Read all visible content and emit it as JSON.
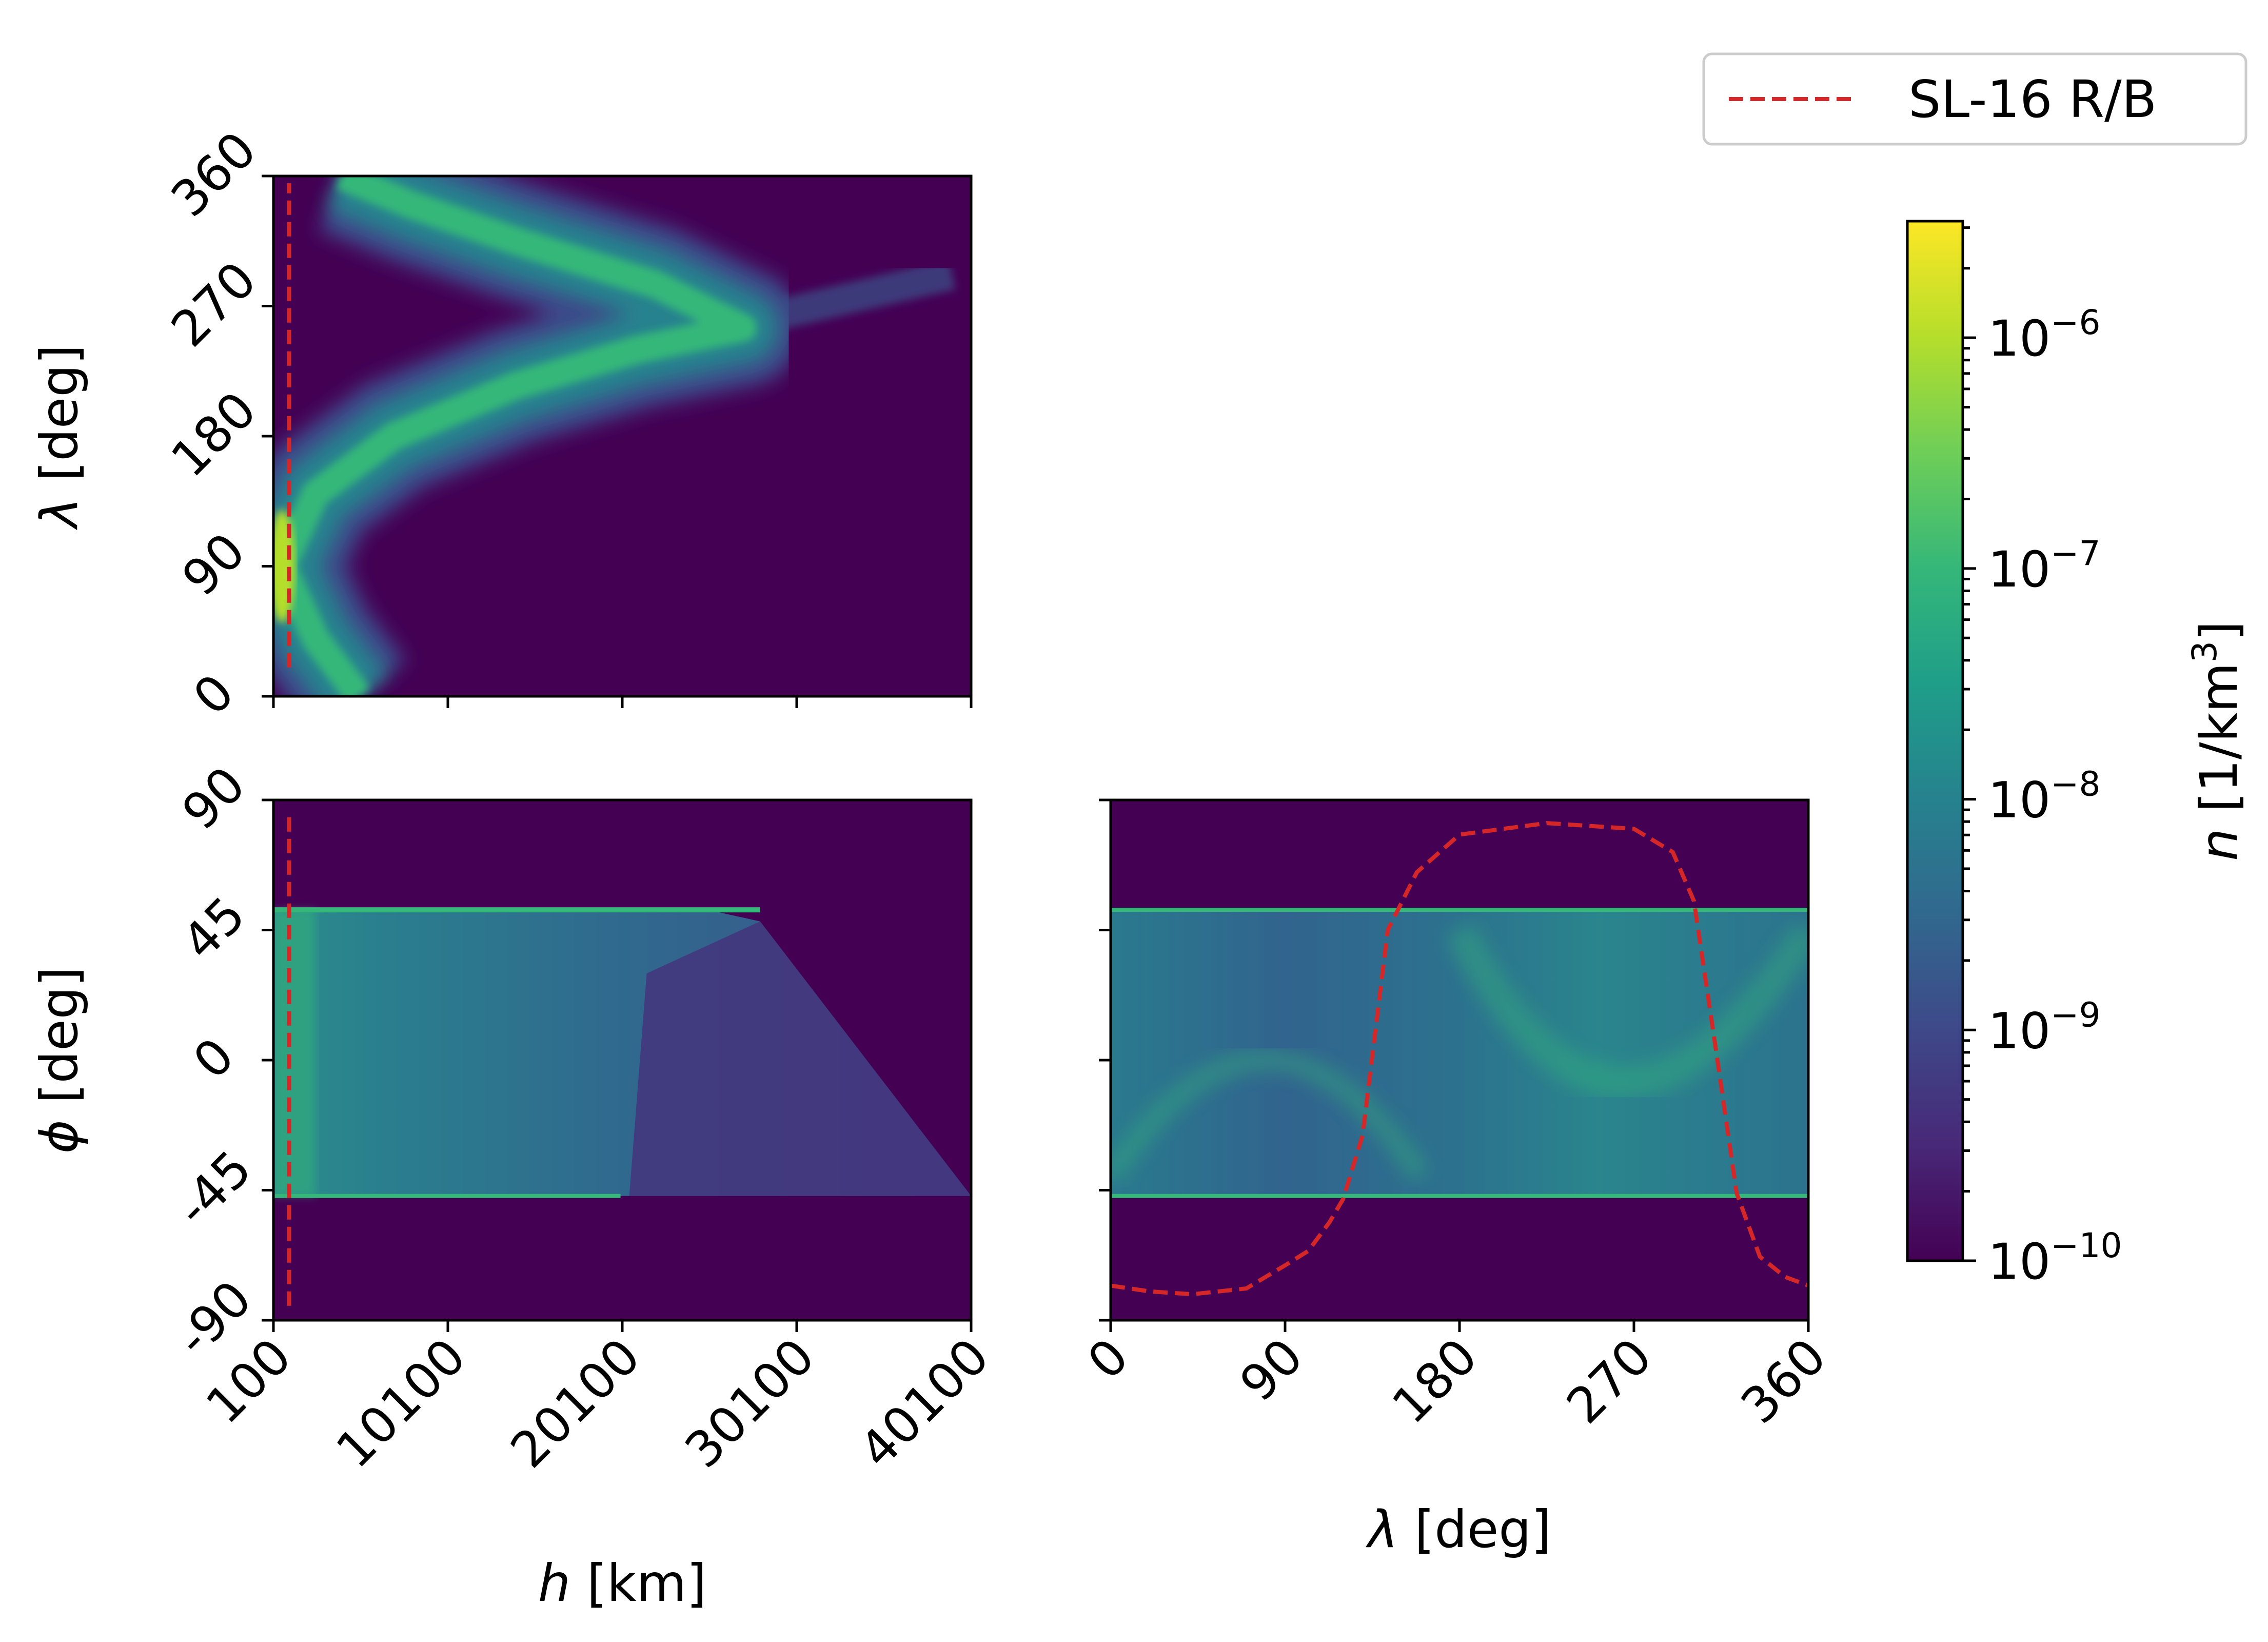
{
  "chart_data": [
    {
      "id": "top-left",
      "type": "heatmap",
      "xlabel": "h [km]",
      "ylabel": "λ [deg]",
      "xlim": [
        100,
        40100
      ],
      "ylim": [
        0,
        360
      ],
      "xticks": [
        100,
        10100,
        20100,
        30100,
        40100
      ],
      "xtick_labels_visible": false,
      "yticks": [
        0,
        90,
        180,
        270,
        360
      ],
      "ytick_labels": [
        "0",
        "90",
        "180",
        "270",
        "360"
      ],
      "density_ridge": {
        "h": [
          5000,
          2500,
          600,
          2500,
          7000,
          14000,
          21000,
          27000,
          22000,
          14000,
          8000,
          4000
        ],
        "lambda": [
          0,
          40,
          90,
          140,
          180,
          215,
          240,
          255,
          285,
          315,
          340,
          360
        ]
      },
      "reference_track": {
        "name": "SL-16 R/B",
        "h": [
          1000,
          1000
        ],
        "lambda": [
          20,
          355
        ]
      }
    },
    {
      "id": "bottom-left",
      "type": "heatmap",
      "xlabel": "h [km]",
      "ylabel": "φ [deg]",
      "xlim": [
        100,
        40100
      ],
      "ylim": [
        -90,
        90
      ],
      "xticks": [
        100,
        10100,
        20100,
        30100,
        40100
      ],
      "xtick_labels": [
        "100",
        "10100",
        "20100",
        "30100",
        "40100"
      ],
      "yticks": [
        -90,
        -45,
        0,
        45,
        90
      ],
      "ytick_labels": [
        "-90",
        "-45",
        "0",
        "45",
        "90"
      ],
      "populated_region": {
        "h": [
          100,
          25000,
          28000,
          40100,
          100
        ],
        "phi": [
          52,
          52,
          48,
          -47,
          -47
        ]
      },
      "reference_track": {
        "name": "SL-16 R/B",
        "h": [
          1000,
          1000
        ],
        "phi": [
          -85,
          85
        ]
      }
    },
    {
      "id": "bottom-right",
      "type": "heatmap",
      "xlabel": "λ [deg]",
      "ylabel": "",
      "xlim": [
        0,
        360
      ],
      "ylim": [
        -90,
        90
      ],
      "xticks": [
        0,
        90,
        180,
        270,
        360
      ],
      "xtick_labels": [
        "0",
        "90",
        "180",
        "270",
        "360"
      ],
      "yticks": [
        -90,
        -45,
        0,
        45,
        90
      ],
      "populated_band": {
        "phi": [
          -47,
          52
        ]
      },
      "reference_track": {
        "name": "SL-16 R/B",
        "lambda": [
          0,
          20,
          42,
          70,
          90,
          102,
          113,
          120,
          130,
          143,
          158,
          180,
          225,
          270,
          290,
          301,
          312,
          323,
          335,
          348,
          360
        ],
        "phi": [
          -78,
          -80,
          -81,
          -79,
          -71,
          -66,
          -56,
          -48,
          -26,
          45,
          65,
          78,
          82,
          80,
          72,
          55,
          5,
          -46,
          -68,
          -75,
          -78
        ]
      }
    }
  ],
  "colorbar": {
    "label_var": "n",
    "label_units": "[1/km",
    "label_exp": "3",
    "label_close": "]",
    "scale": "log",
    "range": [
      1e-10,
      3.2e-06
    ],
    "ticks": [
      {
        "value": -10,
        "base": "10",
        "exp": "−10"
      },
      {
        "value": -9,
        "base": "10",
        "exp": "−9"
      },
      {
        "value": -8,
        "base": "10",
        "exp": "−8"
      },
      {
        "value": -7,
        "base": "10",
        "exp": "−7"
      },
      {
        "value": -6,
        "base": "10",
        "exp": "−6"
      }
    ],
    "colormap": [
      "#440154",
      "#482878",
      "#3e4989",
      "#31688e",
      "#26828e",
      "#1f9e89",
      "#35b779",
      "#6ece58",
      "#b5de2b",
      "#fde725"
    ]
  },
  "legend": {
    "label": "SL-16 R/B",
    "color": "#d62728",
    "style": "dashed"
  },
  "labels": {
    "h_var": "h",
    "h_units": " [km]",
    "lambda_var": "λ",
    "lambda_units": " [deg]",
    "phi_var": "ϕ",
    "phi_units": " [deg]"
  }
}
